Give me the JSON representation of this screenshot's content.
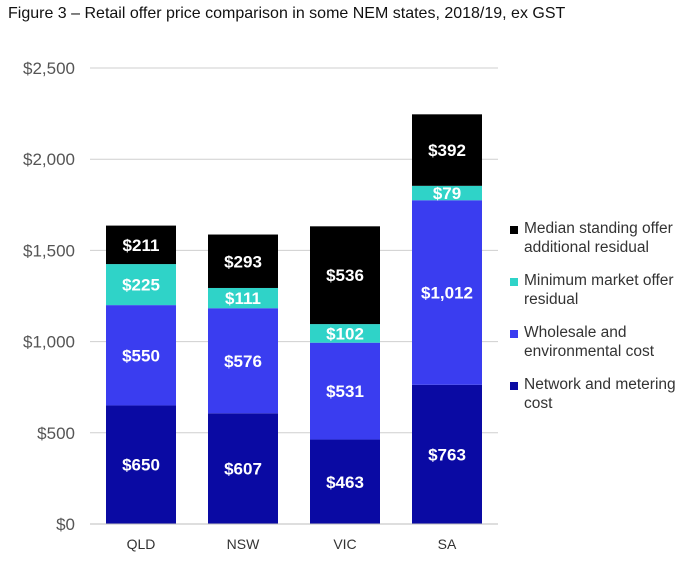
{
  "figure_title": "Figure 3 – Retail offer price comparison in some NEM states, 2018/19, ex GST",
  "chart_data": {
    "type": "bar",
    "stacked": true,
    "title": "",
    "xlabel": "",
    "ylabel": "",
    "ylim": [
      0,
      2500
    ],
    "grid": true,
    "legend_position": "right",
    "categories": [
      "QLD",
      "NSW",
      "VIC",
      "SA"
    ],
    "y_ticks": [
      "$0",
      "$500",
      "$1,000",
      "$1,500",
      "$2,000",
      "$2,500"
    ],
    "y_tick_values": [
      0,
      500,
      1000,
      1500,
      2000,
      2500
    ],
    "series": [
      {
        "name": "Network and metering cost",
        "color": "#0a0aa3",
        "values": [
          650,
          607,
          463,
          763
        ],
        "labels": [
          "$650",
          "$607",
          "$463",
          "$763"
        ]
      },
      {
        "name": "Wholesale and environmental cost",
        "color": "#3a3df0",
        "values": [
          550,
          576,
          531,
          1012
        ],
        "labels": [
          "$550",
          "$576",
          "$531",
          "$1,012"
        ]
      },
      {
        "name": "Minimum market offer residual",
        "color": "#2fd3c8",
        "values": [
          225,
          111,
          102,
          79
        ],
        "labels": [
          "$225",
          "$111",
          "$102",
          "$79"
        ]
      },
      {
        "name": "Median standing offer additional residual",
        "color": "#000000",
        "values": [
          211,
          293,
          536,
          392
        ],
        "labels": [
          "$211",
          "$293",
          "$536",
          "$392"
        ]
      }
    ],
    "legend": [
      {
        "label": "Median standing offer additional residual",
        "color": "#000000"
      },
      {
        "label": "Minimum market offer residual",
        "color": "#2fd3c8"
      },
      {
        "label": "Wholesale and environmental cost",
        "color": "#3a3df0"
      },
      {
        "label": "Network and metering cost",
        "color": "#0a0aa3"
      }
    ]
  }
}
